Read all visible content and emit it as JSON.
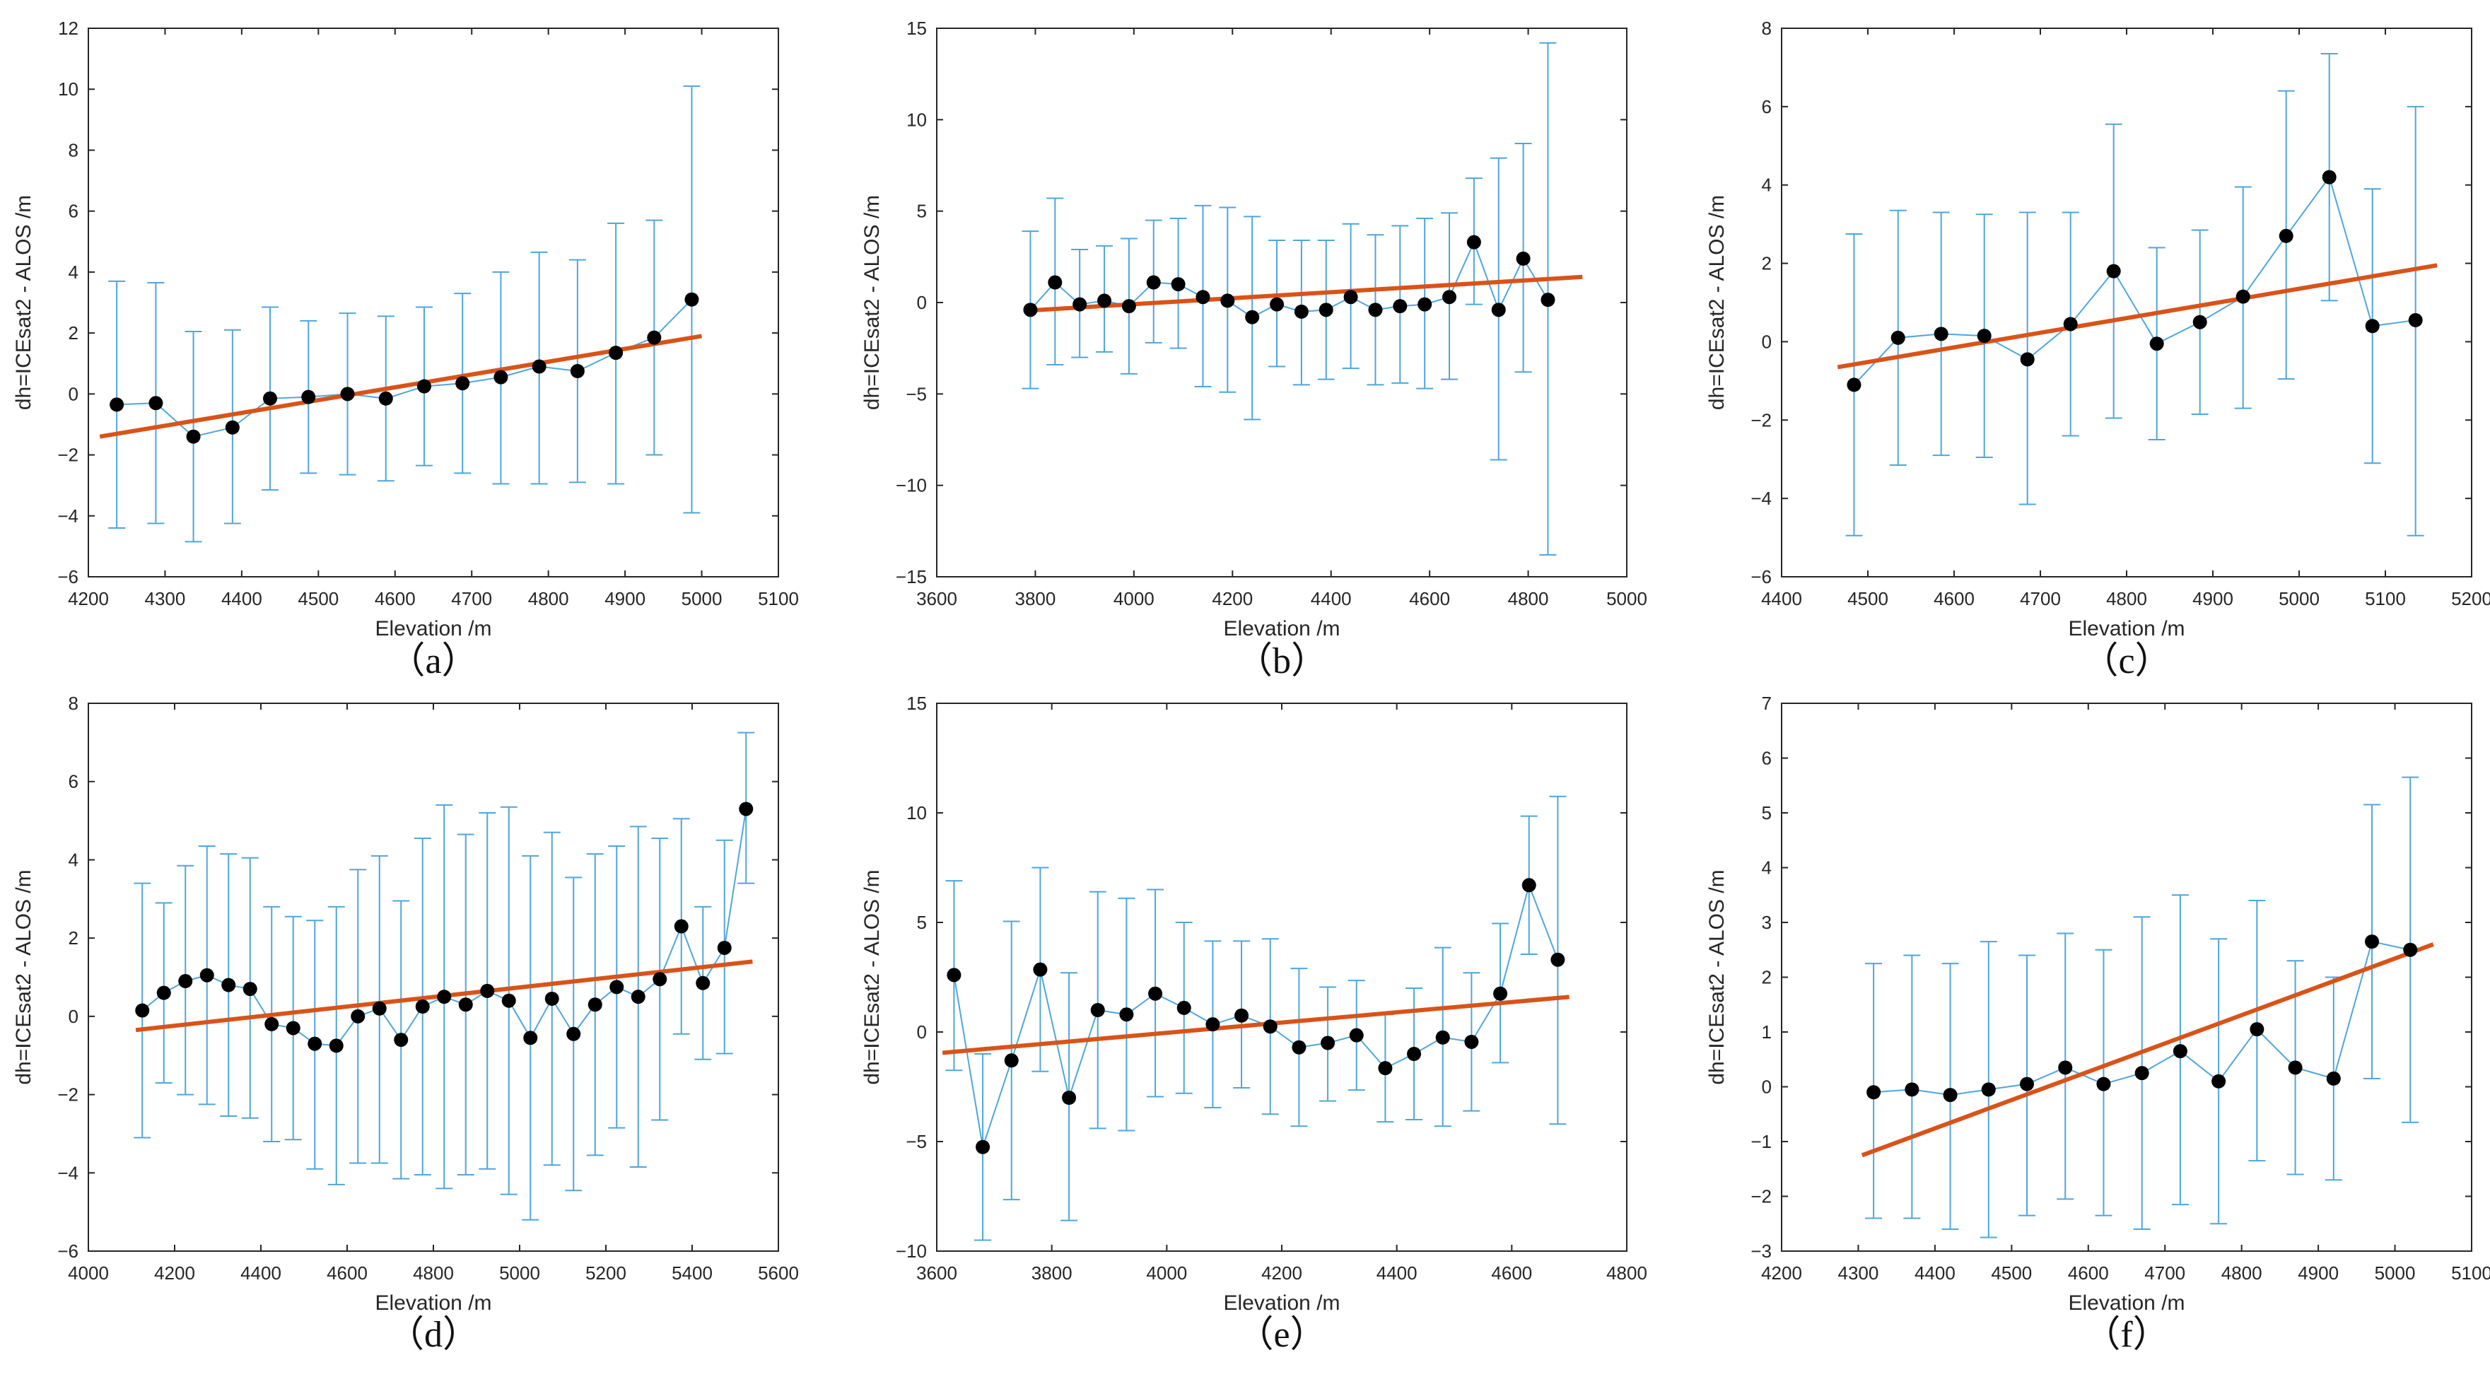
{
  "style": {
    "marker_color": "#000000",
    "error_color": "#4ea6dc",
    "fit_color": "#d95319",
    "axes_color": "#262626"
  },
  "chart_data": [
    {
      "type": "scatter",
      "panel_label": "（a）",
      "title": "",
      "xlabel": "Elevation /m",
      "ylabel": "dh=ICEsat2 - ALOS /m",
      "xlim": [
        4200,
        5100
      ],
      "ylim": [
        -6,
        12
      ],
      "xticks": [
        4200,
        4300,
        4400,
        4500,
        4600,
        4700,
        4800,
        4900,
        5000,
        5100
      ],
      "yticks": [
        -6,
        -4,
        -2,
        0,
        2,
        4,
        6,
        8,
        10,
        12
      ],
      "grid": false,
      "legend": "none",
      "series": [
        {
          "kind": "mean_with_std_error_bars",
          "x": [
            4237,
            4288,
            4337,
            4388,
            4437,
            4487,
            4538,
            4588,
            4638,
            4688,
            4738,
            4788,
            4838,
            4888,
            4938,
            4987
          ],
          "y": [
            -0.35,
            -0.3,
            -1.4,
            -1.1,
            -0.15,
            -0.1,
            0.0,
            -0.15,
            0.25,
            0.35,
            0.55,
            0.9,
            0.75,
            1.35,
            1.85,
            3.1
          ],
          "low": [
            -4.4,
            -4.25,
            -4.85,
            -4.25,
            -3.15,
            -2.6,
            -2.65,
            -2.85,
            -2.35,
            -2.6,
            -2.95,
            -2.95,
            -2.9,
            -2.95,
            -2.0,
            -3.9
          ],
          "high": [
            3.7,
            3.65,
            2.05,
            2.1,
            2.85,
            2.4,
            2.65,
            2.55,
            2.85,
            3.3,
            4.0,
            4.65,
            4.4,
            5.6,
            5.7,
            10.1
          ]
        },
        {
          "kind": "linear_fit",
          "x": [
            4215,
            5000
          ],
          "y": [
            -1.4,
            1.9
          ]
        }
      ]
    },
    {
      "type": "scatter",
      "panel_label": "（b）",
      "title": "",
      "xlabel": "Elevation /m",
      "ylabel": "dh=ICEsat2 - ALOS /m",
      "xlim": [
        3600,
        5000
      ],
      "ylim": [
        -15,
        15
      ],
      "xticks": [
        3600,
        3800,
        4000,
        4200,
        4400,
        4600,
        4800,
        5000
      ],
      "yticks": [
        -15,
        -10,
        -5,
        0,
        5,
        10,
        15
      ],
      "grid": false,
      "legend": "none",
      "series": [
        {
          "kind": "mean_with_std_error_bars",
          "x": [
            3790,
            3840,
            3890,
            3940,
            3990,
            4040,
            4090,
            4140,
            4190,
            4240,
            4290,
            4340,
            4390,
            4440,
            4490,
            4540,
            4590,
            4640,
            4690,
            4740,
            4790,
            4840
          ],
          "y": [
            -0.4,
            1.1,
            -0.1,
            0.1,
            -0.2,
            1.1,
            1.0,
            0.3,
            0.1,
            -0.8,
            -0.1,
            -0.5,
            -0.4,
            0.3,
            -0.4,
            -0.2,
            -0.1,
            0.3,
            3.3,
            -0.4,
            2.4,
            0.15
          ],
          "low": [
            -4.7,
            -3.4,
            -3.0,
            -2.7,
            -3.9,
            -2.2,
            -2.5,
            -4.6,
            -4.9,
            -6.4,
            -3.5,
            -4.5,
            -4.2,
            -3.6,
            -4.5,
            -4.4,
            -4.7,
            -4.2,
            -0.1,
            -8.6,
            -3.8,
            -13.8
          ],
          "high": [
            3.9,
            5.7,
            2.9,
            3.1,
            3.5,
            4.5,
            4.6,
            5.3,
            5.2,
            4.7,
            3.4,
            3.4,
            3.4,
            4.3,
            3.7,
            4.2,
            4.6,
            4.9,
            6.8,
            7.9,
            8.7,
            14.2
          ]
        },
        {
          "kind": "linear_fit",
          "x": [
            3780,
            4910
          ],
          "y": [
            -0.45,
            1.4
          ]
        }
      ]
    },
    {
      "type": "scatter",
      "panel_label": "（c）",
      "title": "",
      "xlabel": "Elevation /m",
      "ylabel": "dh=ICEsat2 - ALOS /m",
      "xlim": [
        4400,
        5200
      ],
      "ylim": [
        -6,
        8
      ],
      "xticks": [
        4400,
        4500,
        4600,
        4700,
        4800,
        4900,
        5000,
        5100,
        5200
      ],
      "yticks": [
        -6,
        -4,
        -2,
        0,
        2,
        4,
        6,
        8
      ],
      "grid": false,
      "legend": "none",
      "series": [
        {
          "kind": "mean_with_std_error_bars",
          "x": [
            4484,
            4535,
            4585,
            4635,
            4685,
            4735,
            4785,
            4835,
            4885,
            4935,
            4985,
            5035,
            5085,
            5135
          ],
          "y": [
            -1.1,
            0.1,
            0.2,
            0.15,
            -0.45,
            0.45,
            1.8,
            -0.05,
            0.5,
            1.15,
            2.7,
            4.2,
            0.4,
            0.55
          ],
          "low": [
            -4.95,
            -3.15,
            -2.9,
            -2.95,
            -4.15,
            -2.4,
            -1.95,
            -2.5,
            -1.85,
            -1.7,
            -0.95,
            1.05,
            -3.1,
            -4.95
          ],
          "high": [
            2.75,
            3.35,
            3.3,
            3.25,
            3.3,
            3.3,
            5.55,
            2.4,
            2.85,
            3.95,
            6.4,
            7.35,
            3.9,
            6.0
          ]
        },
        {
          "kind": "linear_fit",
          "x": [
            4465,
            5160
          ],
          "y": [
            -0.65,
            1.95
          ]
        }
      ]
    },
    {
      "type": "scatter",
      "panel_label": "（d）",
      "title": "",
      "xlabel": "Elevation /m",
      "ylabel": "dh=ICEsat2 - ALOS /m",
      "xlim": [
        4000,
        5600
      ],
      "ylim": [
        -6,
        8
      ],
      "xticks": [
        4000,
        4200,
        4400,
        4600,
        4800,
        5000,
        5200,
        5400,
        5600
      ],
      "yticks": [
        -6,
        -4,
        -2,
        0,
        2,
        4,
        6,
        8
      ],
      "grid": false,
      "legend": "none",
      "series": [
        {
          "kind": "mean_with_std_error_bars",
          "x": [
            4125,
            4175,
            4225,
            4275,
            4325,
            4375,
            4425,
            4475,
            4525,
            4575,
            4625,
            4675,
            4725,
            4775,
            4825,
            4875,
            4925,
            4975,
            5025,
            5075,
            5125,
            5175,
            5225,
            5275,
            5325,
            5375,
            5425,
            5475,
            5525
          ],
          "y": [
            0.15,
            0.6,
            0.9,
            1.05,
            0.8,
            0.7,
            -0.2,
            -0.3,
            -0.7,
            -0.75,
            0.0,
            0.2,
            -0.6,
            0.25,
            0.5,
            0.3,
            0.65,
            0.4,
            -0.55,
            0.45,
            -0.45,
            0.3,
            0.75,
            0.5,
            0.95,
            2.3,
            0.85,
            1.75,
            5.3
          ],
          "low": [
            -3.1,
            -1.7,
            -2.0,
            -2.25,
            -2.55,
            -2.6,
            -3.2,
            -3.15,
            -3.9,
            -4.3,
            -3.75,
            -3.75,
            -4.15,
            -4.05,
            -4.4,
            -4.05,
            -3.9,
            -4.55,
            -5.2,
            -3.8,
            -4.45,
            -3.55,
            -2.85,
            -3.85,
            -2.65,
            -0.45,
            -1.1,
            -0.95,
            3.4
          ],
          "high": [
            3.4,
            2.9,
            3.85,
            4.35,
            4.15,
            4.05,
            2.8,
            2.55,
            2.45,
            2.8,
            3.75,
            4.1,
            2.95,
            4.55,
            5.4,
            4.65,
            5.2,
            5.35,
            4.1,
            4.7,
            3.55,
            4.15,
            4.35,
            4.85,
            4.55,
            5.05,
            2.8,
            4.5,
            7.25
          ]
        },
        {
          "kind": "linear_fit",
          "x": [
            4110,
            5540
          ],
          "y": [
            -0.35,
            1.4
          ]
        }
      ]
    },
    {
      "type": "scatter",
      "panel_label": "（e）",
      "title": "",
      "xlabel": "Elevation /m",
      "ylabel": "dh=ICEsat2 - ALOS /m",
      "xlim": [
        3600,
        4800
      ],
      "ylim": [
        -10,
        15
      ],
      "xticks": [
        3600,
        3800,
        4000,
        4200,
        4400,
        4600,
        4800
      ],
      "yticks": [
        -10,
        -5,
        0,
        5,
        10,
        15
      ],
      "grid": false,
      "legend": "none",
      "series": [
        {
          "kind": "mean_with_std_error_bars",
          "x": [
            3630,
            3680,
            3730,
            3780,
            3830,
            3880,
            3930,
            3980,
            4030,
            4080,
            4130,
            4180,
            4230,
            4280,
            4330,
            4380,
            4430,
            4480,
            4530,
            4580,
            4630,
            4680
          ],
          "y": [
            2.6,
            -5.25,
            -1.3,
            2.85,
            -3.0,
            1.0,
            0.8,
            1.75,
            1.1,
            0.35,
            0.75,
            0.25,
            -0.7,
            -0.5,
            -0.15,
            -1.65,
            -1.0,
            -0.25,
            -0.45,
            1.75,
            6.7,
            3.3
          ],
          "low": [
            -1.75,
            -9.5,
            -7.65,
            -1.8,
            -8.6,
            -4.4,
            -4.5,
            -2.95,
            -2.8,
            -3.45,
            -2.55,
            -3.75,
            -4.3,
            -3.15,
            -2.65,
            -4.1,
            -4.0,
            -4.3,
            -3.6,
            -1.4,
            3.55,
            -4.2
          ],
          "high": [
            6.9,
            -1.0,
            5.05,
            7.5,
            2.7,
            6.4,
            6.1,
            6.5,
            5.0,
            4.15,
            4.15,
            4.25,
            2.9,
            2.05,
            2.35,
            0.8,
            2.0,
            3.85,
            2.7,
            4.95,
            9.85,
            10.75
          ]
        },
        {
          "kind": "linear_fit",
          "x": [
            3610,
            4700
          ],
          "y": [
            -0.95,
            1.6
          ]
        }
      ]
    },
    {
      "type": "scatter",
      "panel_label": "（f）",
      "title": "",
      "xlabel": "Elevation /m",
      "ylabel": "dh=ICEsat2 - ALOS /m",
      "xlim": [
        4200,
        5100
      ],
      "ylim": [
        -3,
        7
      ],
      "xticks": [
        4200,
        4300,
        4400,
        4500,
        4600,
        4700,
        4800,
        4900,
        5000,
        5100
      ],
      "yticks": [
        -3,
        -2,
        -1,
        0,
        1,
        2,
        3,
        4,
        5,
        6,
        7
      ],
      "grid": false,
      "legend": "none",
      "series": [
        {
          "kind": "mean_with_std_error_bars",
          "x": [
            4320,
            4370,
            4420,
            4470,
            4520,
            4570,
            4620,
            4670,
            4720,
            4770,
            4820,
            4870,
            4920,
            4970,
            5020
          ],
          "y": [
            -0.1,
            -0.05,
            -0.15,
            -0.05,
            0.05,
            0.35,
            0.05,
            0.25,
            0.65,
            0.1,
            1.05,
            0.35,
            0.15,
            2.65,
            2.5
          ],
          "low": [
            -2.4,
            -2.4,
            -2.6,
            -2.75,
            -2.35,
            -2.05,
            -2.35,
            -2.6,
            -2.15,
            -2.5,
            -1.35,
            -1.6,
            -1.7,
            0.15,
            -0.65
          ],
          "high": [
            2.25,
            2.4,
            2.25,
            2.65,
            2.4,
            2.8,
            2.5,
            3.1,
            3.5,
            2.7,
            3.4,
            2.3,
            2.0,
            5.15,
            5.65
          ]
        },
        {
          "kind": "linear_fit",
          "x": [
            4305,
            5050
          ],
          "y": [
            -1.25,
            2.6
          ]
        }
      ]
    }
  ]
}
